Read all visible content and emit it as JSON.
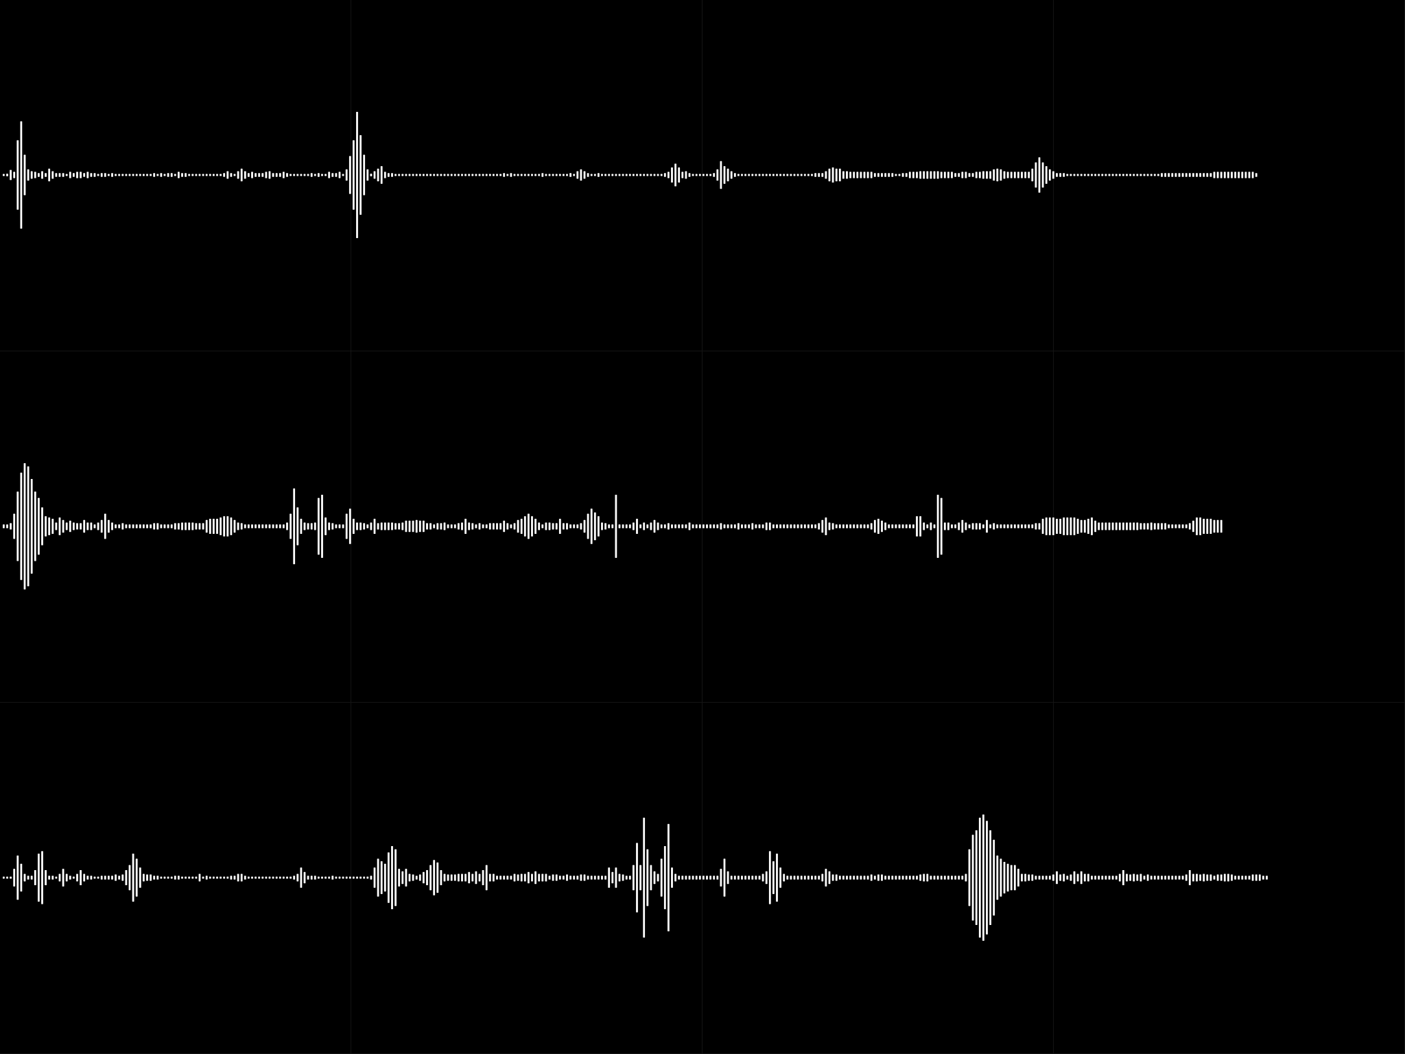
{
  "colors": {
    "background": "#000000",
    "bar": "#ffffff",
    "grid_line": "#141414"
  },
  "waveforms": [
    {
      "row": 1,
      "bar_values": [
        0.01,
        0.02,
        0.08,
        0.05,
        0.55,
        0.85,
        0.32,
        0.09,
        0.06,
        0.05,
        0.03,
        0.06,
        0.03,
        0.1,
        0.06,
        0.03,
        0.03,
        0.03,
        0.01,
        0.05,
        0.03,
        0.05,
        0.05,
        0.03,
        0.05,
        0.03,
        0.03,
        0.01,
        0.03,
        0.03,
        0.01,
        0.03,
        0.01,
        0.01,
        0.01,
        0.01,
        0.01,
        0.01,
        0.01,
        0.01,
        0.01,
        0.01,
        0.01,
        0.03,
        0.01,
        0.03,
        0.01,
        0.03,
        0.03,
        0.01,
        0.05,
        0.03,
        0.03,
        0.01,
        0.01,
        0.01,
        0.01,
        0.01,
        0.01,
        0.01,
        0.01,
        0.01,
        0.01,
        0.03,
        0.06,
        0.03,
        0.01,
        0.06,
        0.1,
        0.06,
        0.03,
        0.05,
        0.03,
        0.03,
        0.03,
        0.05,
        0.06,
        0.03,
        0.03,
        0.03,
        0.05,
        0.03,
        0.01,
        0.01,
        0.01,
        0.01,
        0.01,
        0.01,
        0.03,
        0.01,
        0.03,
        0.01,
        0.01,
        0.05,
        0.03,
        0.03,
        0.05,
        0.01,
        0.09,
        0.3,
        0.55,
        1.0,
        0.63,
        0.32,
        0.09,
        0.02,
        0.06,
        0.1,
        0.14,
        0.05,
        0.03,
        0.03,
        0.01,
        0.01,
        0.01,
        0.01,
        0.01,
        0.01,
        0.01,
        0.01,
        0.01,
        0.01,
        0.01,
        0.01,
        0.01,
        0.01,
        0.01,
        0.01,
        0.01,
        0.01,
        0.01,
        0.01,
        0.01,
        0.01,
        0.01,
        0.01,
        0.01,
        0.01,
        0.01,
        0.01,
        0.01,
        0.01,
        0.01,
        0.03,
        0.01,
        0.03,
        0.01,
        0.01,
        0.01,
        0.01,
        0.01,
        0.01,
        0.01,
        0.01,
        0.03,
        0.01,
        0.01,
        0.01,
        0.01,
        0.01,
        0.01,
        0.01,
        0.03,
        0.01,
        0.06,
        0.09,
        0.06,
        0.03,
        0.01,
        0.01,
        0.03,
        0.01,
        0.01,
        0.01,
        0.01,
        0.01,
        0.01,
        0.01,
        0.01,
        0.01,
        0.01,
        0.01,
        0.01,
        0.01,
        0.01,
        0.01,
        0.01,
        0.01,
        0.01,
        0.03,
        0.05,
        0.12,
        0.18,
        0.12,
        0.05,
        0.06,
        0.03,
        0.01,
        0.01,
        0.01,
        0.01,
        0.01,
        0.01,
        0.03,
        0.09,
        0.22,
        0.14,
        0.1,
        0.06,
        0.03,
        0.01,
        0.01,
        0.01,
        0.01,
        0.01,
        0.01,
        0.01,
        0.01,
        0.01,
        0.01,
        0.01,
        0.01,
        0.01,
        0.01,
        0.01,
        0.01,
        0.01,
        0.01,
        0.01,
        0.01,
        0.01,
        0.01,
        0.03,
        0.03,
        0.03,
        0.06,
        0.1,
        0.12,
        0.1,
        0.1,
        0.06,
        0.06,
        0.05,
        0.05,
        0.05,
        0.05,
        0.05,
        0.05,
        0.05,
        0.03,
        0.03,
        0.03,
        0.03,
        0.03,
        0.03,
        0.01,
        0.01,
        0.03,
        0.03,
        0.05,
        0.05,
        0.05,
        0.06,
        0.06,
        0.06,
        0.06,
        0.06,
        0.06,
        0.05,
        0.05,
        0.05,
        0.05,
        0.03,
        0.03,
        0.05,
        0.05,
        0.03,
        0.03,
        0.05,
        0.05,
        0.06,
        0.06,
        0.06,
        0.09,
        0.1,
        0.09,
        0.06,
        0.05,
        0.05,
        0.05,
        0.05,
        0.05,
        0.05,
        0.05,
        0.1,
        0.2,
        0.28,
        0.2,
        0.14,
        0.09,
        0.06,
        0.03,
        0.03,
        0.03,
        0.01,
        0.01,
        0.01,
        0.01,
        0.01,
        0.01,
        0.01,
        0.01,
        0.01,
        0.01,
        0.01,
        0.01,
        0.01,
        0.01,
        0.01,
        0.01,
        0.01,
        0.01,
        0.01,
        0.01,
        0.01,
        0.01,
        0.01,
        0.01,
        0.01,
        0.01,
        0.01,
        0.03,
        0.03,
        0.03,
        0.03,
        0.03,
        0.03,
        0.03,
        0.03,
        0.03,
        0.03,
        0.03,
        0.03,
        0.03,
        0.03,
        0.03,
        0.05,
        0.05,
        0.05,
        0.05,
        0.05,
        0.05,
        0.05,
        0.05,
        0.05,
        0.05,
        0.05,
        0.05,
        0.03
      ]
    },
    {
      "row": 2,
      "bar_values": [
        0.03,
        0.03,
        0.05,
        0.2,
        0.55,
        0.85,
        1.0,
        0.95,
        0.75,
        0.55,
        0.45,
        0.3,
        0.16,
        0.14,
        0.12,
        0.06,
        0.14,
        0.1,
        0.06,
        0.09,
        0.06,
        0.05,
        0.05,
        0.1,
        0.06,
        0.06,
        0.03,
        0.06,
        0.1,
        0.2,
        0.1,
        0.06,
        0.03,
        0.03,
        0.05,
        0.03,
        0.03,
        0.03,
        0.03,
        0.03,
        0.03,
        0.03,
        0.03,
        0.05,
        0.05,
        0.03,
        0.03,
        0.03,
        0.03,
        0.05,
        0.05,
        0.06,
        0.06,
        0.06,
        0.06,
        0.05,
        0.05,
        0.05,
        0.1,
        0.12,
        0.12,
        0.12,
        0.14,
        0.16,
        0.16,
        0.14,
        0.1,
        0.06,
        0.05,
        0.03,
        0.03,
        0.03,
        0.03,
        0.03,
        0.03,
        0.03,
        0.03,
        0.03,
        0.03,
        0.03,
        0.03,
        0.06,
        0.2,
        0.6,
        0.3,
        0.12,
        0.06,
        0.05,
        0.05,
        0.06,
        0.45,
        0.5,
        0.14,
        0.06,
        0.05,
        0.03,
        0.03,
        0.03,
        0.2,
        0.28,
        0.12,
        0.06,
        0.06,
        0.05,
        0.03,
        0.06,
        0.12,
        0.05,
        0.06,
        0.06,
        0.06,
        0.06,
        0.05,
        0.05,
        0.06,
        0.09,
        0.09,
        0.09,
        0.1,
        0.09,
        0.09,
        0.05,
        0.05,
        0.03,
        0.05,
        0.05,
        0.06,
        0.03,
        0.03,
        0.03,
        0.05,
        0.06,
        0.12,
        0.06,
        0.05,
        0.03,
        0.05,
        0.03,
        0.03,
        0.05,
        0.05,
        0.05,
        0.05,
        0.09,
        0.05,
        0.03,
        0.05,
        0.1,
        0.12,
        0.16,
        0.2,
        0.16,
        0.12,
        0.06,
        0.03,
        0.06,
        0.06,
        0.05,
        0.05,
        0.12,
        0.05,
        0.05,
        0.03,
        0.03,
        0.03,
        0.05,
        0.1,
        0.2,
        0.28,
        0.22,
        0.16,
        0.06,
        0.05,
        0.03,
        0.03,
        0.5,
        0.03,
        0.03,
        0.03,
        0.03,
        0.06,
        0.12,
        0.03,
        0.06,
        0.03,
        0.06,
        0.1,
        0.06,
        0.03,
        0.03,
        0.05,
        0.03,
        0.03,
        0.03,
        0.03,
        0.03,
        0.06,
        0.03,
        0.03,
        0.03,
        0.03,
        0.03,
        0.03,
        0.03,
        0.03,
        0.05,
        0.03,
        0.03,
        0.03,
        0.03,
        0.05,
        0.03,
        0.03,
        0.03,
        0.05,
        0.03,
        0.03,
        0.03,
        0.06,
        0.06,
        0.03,
        0.03,
        0.03,
        0.03,
        0.03,
        0.03,
        0.03,
        0.03,
        0.03,
        0.03,
        0.03,
        0.03,
        0.03,
        0.05,
        0.1,
        0.14,
        0.06,
        0.05,
        0.03,
        0.03,
        0.03,
        0.03,
        0.03,
        0.03,
        0.03,
        0.03,
        0.03,
        0.03,
        0.05,
        0.1,
        0.12,
        0.09,
        0.06,
        0.03,
        0.03,
        0.03,
        0.03,
        0.03,
        0.03,
        0.03,
        0.03,
        0.16,
        0.16,
        0.06,
        0.03,
        0.06,
        0.03,
        0.5,
        0.45,
        0.06,
        0.06,
        0.03,
        0.03,
        0.06,
        0.1,
        0.06,
        0.03,
        0.05,
        0.05,
        0.05,
        0.03,
        0.1,
        0.03,
        0.05,
        0.03,
        0.03,
        0.03,
        0.03,
        0.03,
        0.03,
        0.03,
        0.03,
        0.03,
        0.03,
        0.03,
        0.05,
        0.05,
        0.12,
        0.14,
        0.14,
        0.14,
        0.12,
        0.12,
        0.14,
        0.14,
        0.14,
        0.14,
        0.12,
        0.1,
        0.1,
        0.12,
        0.14,
        0.09,
        0.06,
        0.06,
        0.06,
        0.06,
        0.06,
        0.06,
        0.06,
        0.06,
        0.06,
        0.06,
        0.06,
        0.06,
        0.05,
        0.05,
        0.05,
        0.06,
        0.05,
        0.05,
        0.05,
        0.05,
        0.03,
        0.03,
        0.03,
        0.03,
        0.03,
        0.03,
        0.05,
        0.09,
        0.14,
        0.14,
        0.12,
        0.12,
        0.12,
        0.1,
        0.1,
        0.1
      ]
    },
    {
      "row": 3,
      "bar_values": [
        0.01,
        0.01,
        0.01,
        0.14,
        0.35,
        0.22,
        0.06,
        0.03,
        0.03,
        0.12,
        0.38,
        0.42,
        0.12,
        0.03,
        0.03,
        0.01,
        0.06,
        0.14,
        0.06,
        0.03,
        0.01,
        0.06,
        0.12,
        0.06,
        0.03,
        0.03,
        0.01,
        0.01,
        0.03,
        0.03,
        0.03,
        0.03,
        0.05,
        0.03,
        0.05,
        0.12,
        0.2,
        0.38,
        0.3,
        0.16,
        0.06,
        0.05,
        0.05,
        0.03,
        0.03,
        0.01,
        0.01,
        0.01,
        0.01,
        0.03,
        0.03,
        0.01,
        0.01,
        0.01,
        0.01,
        0.01,
        0.06,
        0.01,
        0.03,
        0.01,
        0.01,
        0.01,
        0.01,
        0.01,
        0.01,
        0.03,
        0.03,
        0.06,
        0.06,
        0.03,
        0.01,
        0.01,
        0.01,
        0.01,
        0.01,
        0.01,
        0.01,
        0.01,
        0.01,
        0.01,
        0.01,
        0.01,
        0.01,
        0.03,
        0.06,
        0.16,
        0.09,
        0.03,
        0.03,
        0.03,
        0.01,
        0.01,
        0.01,
        0.01,
        0.03,
        0.01,
        0.01,
        0.01,
        0.01,
        0.01,
        0.01,
        0.01,
        0.01,
        0.01,
        0.01,
        0.03,
        0.16,
        0.3,
        0.26,
        0.22,
        0.4,
        0.5,
        0.45,
        0.14,
        0.1,
        0.14,
        0.06,
        0.05,
        0.03,
        0.05,
        0.09,
        0.12,
        0.2,
        0.28,
        0.24,
        0.12,
        0.06,
        0.05,
        0.05,
        0.05,
        0.06,
        0.06,
        0.06,
        0.09,
        0.06,
        0.1,
        0.06,
        0.12,
        0.2,
        0.06,
        0.06,
        0.03,
        0.03,
        0.03,
        0.03,
        0.03,
        0.06,
        0.05,
        0.06,
        0.06,
        0.09,
        0.06,
        0.1,
        0.06,
        0.06,
        0.06,
        0.03,
        0.05,
        0.05,
        0.03,
        0.03,
        0.05,
        0.03,
        0.03,
        0.03,
        0.05,
        0.05,
        0.03,
        0.03,
        0.03,
        0.03,
        0.03,
        0.03,
        0.16,
        0.09,
        0.16,
        0.06,
        0.05,
        0.03,
        0.03,
        0.2,
        0.55,
        0.2,
        0.95,
        0.45,
        0.2,
        0.1,
        0.06,
        0.3,
        0.5,
        0.85,
        0.16,
        0.06,
        0.03,
        0.03,
        0.03,
        0.03,
        0.03,
        0.03,
        0.03,
        0.03,
        0.03,
        0.03,
        0.03,
        0.03,
        0.14,
        0.3,
        0.1,
        0.03,
        0.03,
        0.03,
        0.03,
        0.03,
        0.03,
        0.03,
        0.03,
        0.03,
        0.06,
        0.1,
        0.42,
        0.26,
        0.38,
        0.16,
        0.06,
        0.03,
        0.03,
        0.03,
        0.03,
        0.03,
        0.03,
        0.03,
        0.03,
        0.03,
        0.03,
        0.06,
        0.14,
        0.1,
        0.05,
        0.05,
        0.03,
        0.03,
        0.03,
        0.03,
        0.03,
        0.03,
        0.03,
        0.03,
        0.03,
        0.05,
        0.03,
        0.05,
        0.05,
        0.03,
        0.03,
        0.03,
        0.03,
        0.03,
        0.03,
        0.03,
        0.03,
        0.03,
        0.03,
        0.05,
        0.06,
        0.06,
        0.03,
        0.03,
        0.03,
        0.03,
        0.03,
        0.03,
        0.03,
        0.03,
        0.03,
        0.03,
        0.06,
        0.45,
        0.68,
        0.75,
        0.95,
        1.0,
        0.9,
        0.75,
        0.6,
        0.35,
        0.3,
        0.25,
        0.22,
        0.2,
        0.2,
        0.14,
        0.06,
        0.06,
        0.05,
        0.05,
        0.03,
        0.03,
        0.03,
        0.03,
        0.03,
        0.05,
        0.1,
        0.05,
        0.06,
        0.03,
        0.05,
        0.1,
        0.06,
        0.1,
        0.06,
        0.06,
        0.03,
        0.03,
        0.03,
        0.03,
        0.03,
        0.03,
        0.03,
        0.03,
        0.06,
        0.12,
        0.06,
        0.05,
        0.06,
        0.05,
        0.06,
        0.03,
        0.05,
        0.03,
        0.03,
        0.03,
        0.03,
        0.03,
        0.03,
        0.03,
        0.03,
        0.03,
        0.03,
        0.05,
        0.12,
        0.06,
        0.06,
        0.05,
        0.06,
        0.05,
        0.05,
        0.03,
        0.05,
        0.05,
        0.06,
        0.06,
        0.05,
        0.03,
        0.03,
        0.03,
        0.03,
        0.03,
        0.05,
        0.05,
        0.05,
        0.03,
        0.03
      ]
    }
  ]
}
